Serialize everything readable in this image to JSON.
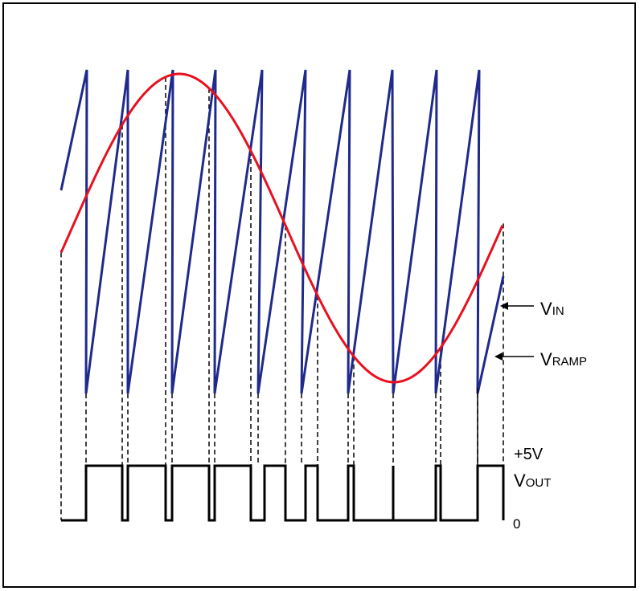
{
  "labels": {
    "vin_main": "V",
    "vin_sub": "IN",
    "vramp_main": "V",
    "vramp_sub": "RAMP",
    "plus5v": "+5V",
    "vout_main": "V",
    "vout_sub": "OUT",
    "zero": "0"
  },
  "colors": {
    "ramp": "#1f2a8c",
    "vin": "#e8101e",
    "vout": "#000000",
    "dashed": "#000000"
  }
}
